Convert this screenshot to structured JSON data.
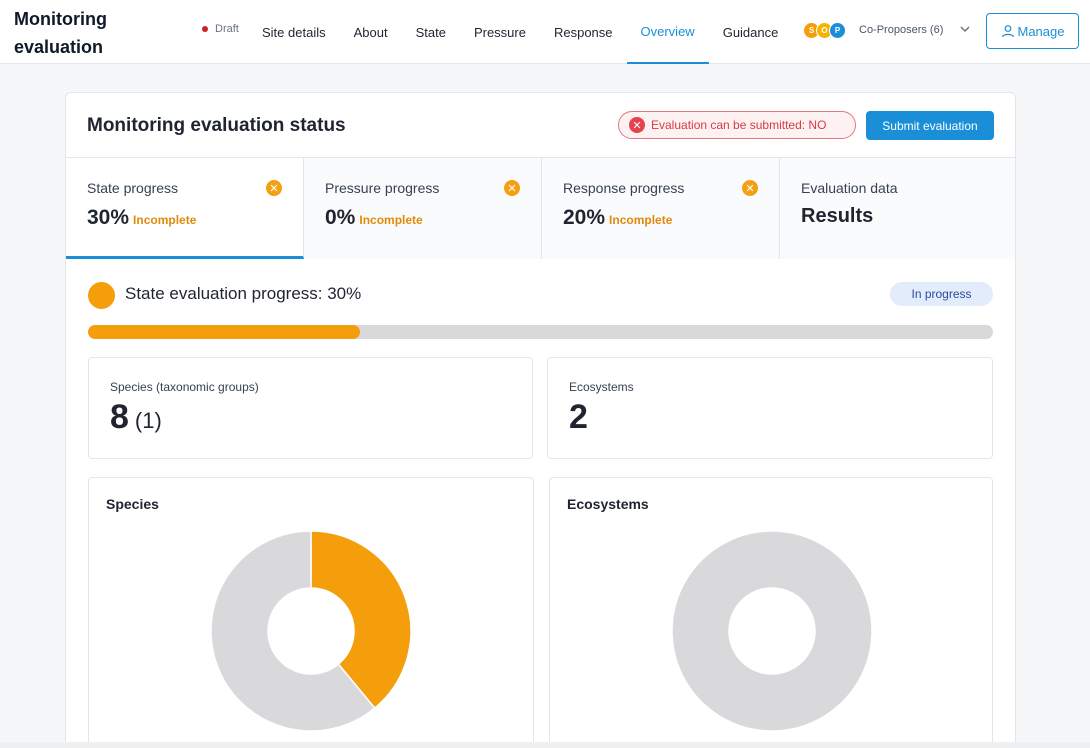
{
  "header": {
    "title": "Monitoring evaluation",
    "status": "Draft",
    "nav": [
      "Site details",
      "About",
      "State",
      "Pressure",
      "Response",
      "Overview",
      "Guidance"
    ],
    "active_nav": "Overview",
    "avatars": [
      {
        "letter": "S",
        "color": "#f59e0b"
      },
      {
        "letter": "O",
        "color": "#f4b400"
      },
      {
        "letter": "P",
        "color": "#1a8fd8"
      }
    ],
    "coproposers_label": "Co-Proposers (6)",
    "manage_label": "Manage"
  },
  "card": {
    "title": "Monitoring evaluation status",
    "submittable_text": "Evaluation can be submitted: NO",
    "submit_label": "Submit evaluation"
  },
  "progress_tabs": [
    {
      "label": "State progress",
      "percent": "30%",
      "status": "Incomplete"
    },
    {
      "label": "Pressure progress",
      "percent": "0%",
      "status": "Incomplete"
    },
    {
      "label": "Response progress",
      "percent": "20%",
      "status": "Incomplete"
    },
    {
      "label": "Evaluation data",
      "value": "Results"
    }
  ],
  "section": {
    "title": "State evaluation progress: 30%",
    "badge": "In progress",
    "progress_fraction": 0.3
  },
  "stats": {
    "species_label": "Species (taxonomic groups)",
    "species_value": "8",
    "species_groups": "(1)",
    "ecosystems_label": "Ecosystems",
    "ecosystems_value": "2"
  },
  "colors": {
    "accent": "#1a8fd8",
    "warning": "#f59e0b",
    "remaining": "#d9d9db"
  },
  "chart_data": [
    {
      "type": "pie",
      "title": "Species",
      "slices": [
        {
          "value": 39,
          "color": "#f59e0b"
        },
        {
          "value": 61,
          "color": "#d9d9db"
        }
      ]
    },
    {
      "type": "pie",
      "title": "Ecosystems",
      "slices": [
        {
          "value": 0,
          "color": "#f59e0b"
        },
        {
          "value": 100,
          "color": "#d9d9db"
        }
      ]
    }
  ]
}
